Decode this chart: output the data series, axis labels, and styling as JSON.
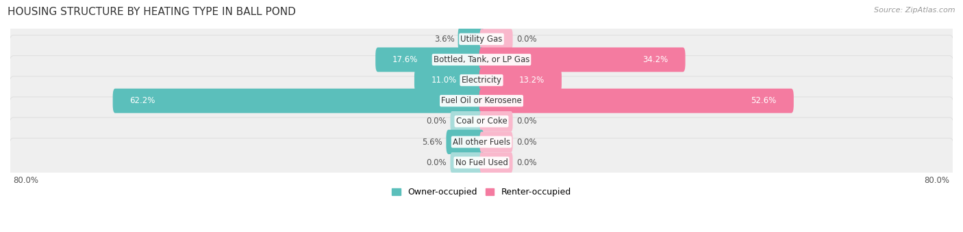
{
  "title": "HOUSING STRUCTURE BY HEATING TYPE IN BALL POND",
  "source": "Source: ZipAtlas.com",
  "categories": [
    "Utility Gas",
    "Bottled, Tank, or LP Gas",
    "Electricity",
    "Fuel Oil or Kerosene",
    "Coal or Coke",
    "All other Fuels",
    "No Fuel Used"
  ],
  "owner_values": [
    3.6,
    17.6,
    11.0,
    62.2,
    0.0,
    5.6,
    0.0
  ],
  "renter_values": [
    0.0,
    34.2,
    13.2,
    52.6,
    0.0,
    0.0,
    0.0
  ],
  "owner_color": "#5BBFBB",
  "owner_stub_color": "#A8DCDA",
  "renter_color": "#F47BA0",
  "renter_stub_color": "#F9B8CC",
  "max_val": 80.0,
  "axis_label_left": "80.0%",
  "axis_label_right": "80.0%",
  "row_bg_color": "#EFEFEF",
  "row_border_color": "#D8D8D8",
  "title_fontsize": 11,
  "source_fontsize": 8,
  "bar_label_fontsize": 8.5,
  "category_fontsize": 8.5,
  "legend_fontsize": 9,
  "axis_fontsize": 8.5,
  "stub_size": 5.0
}
